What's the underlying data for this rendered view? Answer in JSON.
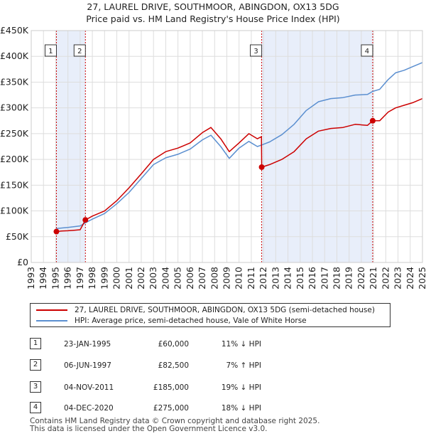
{
  "chart_data": {
    "type": "line",
    "title": "27, LAUREL DRIVE, SOUTHMOOR, ABINGDON, OX13 5DG",
    "subtitle": "Price paid vs. HM Land Registry's House Price Index (HPI)",
    "xlim": [
      1993,
      2025
    ],
    "ylim": [
      0,
      450000
    ],
    "x_ticks": [
      "1993",
      "1994",
      "1995",
      "1996",
      "1997",
      "1998",
      "1999",
      "2000",
      "2001",
      "2002",
      "2003",
      "2004",
      "2005",
      "2006",
      "2007",
      "2008",
      "2009",
      "2010",
      "2011",
      "2012",
      "2013",
      "2014",
      "2015",
      "2016",
      "2017",
      "2018",
      "2019",
      "2020",
      "2021",
      "2022",
      "2023",
      "2024",
      "2025"
    ],
    "y_ticks": [
      {
        "value": 0,
        "label": "£0"
      },
      {
        "value": 50000,
        "label": "£50K"
      },
      {
        "value": 100000,
        "label": "£100K"
      },
      {
        "value": 150000,
        "label": "£150K"
      },
      {
        "value": 200000,
        "label": "£200K"
      },
      {
        "value": 250000,
        "label": "£250K"
      },
      {
        "value": 300000,
        "label": "£300K"
      },
      {
        "value": 350000,
        "label": "£350K"
      },
      {
        "value": 400000,
        "label": "£400K"
      },
      {
        "value": 450000,
        "label": "£450K"
      }
    ],
    "series": [
      {
        "name": "27, LAUREL DRIVE, SOUTHMOOR, ABINGDON, OX13 5DG (semi-detached house)",
        "color": "#cc0000",
        "points": [
          [
            1995.06,
            60000
          ],
          [
            1995.5,
            61000
          ],
          [
            1996,
            61500
          ],
          [
            1996.5,
            62500
          ],
          [
            1997.0,
            63500
          ],
          [
            1997.43,
            82500
          ],
          [
            1998,
            90000
          ],
          [
            1999,
            100000
          ],
          [
            2000,
            120000
          ],
          [
            2001,
            145000
          ],
          [
            2002,
            172000
          ],
          [
            2003,
            200000
          ],
          [
            2004,
            215000
          ],
          [
            2005,
            222000
          ],
          [
            2006,
            232000
          ],
          [
            2007,
            252000
          ],
          [
            2007.7,
            262000
          ],
          [
            2008.5,
            240000
          ],
          [
            2009.2,
            215000
          ],
          [
            2010,
            232000
          ],
          [
            2010.8,
            250000
          ],
          [
            2011.5,
            240000
          ],
          [
            2011.83,
            244000
          ],
          [
            2011.85,
            185000
          ],
          [
            2012.5,
            190000
          ],
          [
            2013.5,
            200000
          ],
          [
            2014.5,
            215000
          ],
          [
            2015.5,
            240000
          ],
          [
            2016.5,
            255000
          ],
          [
            2017.5,
            260000
          ],
          [
            2018.5,
            262000
          ],
          [
            2019.5,
            268000
          ],
          [
            2020.5,
            266000
          ],
          [
            2020.93,
            275000
          ],
          [
            2021.5,
            275000
          ],
          [
            2022.2,
            292000
          ],
          [
            2022.8,
            300000
          ],
          [
            2023.5,
            305000
          ],
          [
            2024.2,
            310000
          ],
          [
            2025,
            318000
          ]
        ]
      },
      {
        "name": "HPI: Average price, semi-detached house, Vale of White Horse",
        "color": "#5b8fd0",
        "points": [
          [
            1995.06,
            66000
          ],
          [
            1996,
            68000
          ],
          [
            1997,
            71000
          ],
          [
            1997.43,
            77000
          ],
          [
            1998,
            84000
          ],
          [
            1999,
            95000
          ],
          [
            2000,
            114000
          ],
          [
            2001,
            136000
          ],
          [
            2002,
            163000
          ],
          [
            2003,
            190000
          ],
          [
            2004,
            203000
          ],
          [
            2005,
            210000
          ],
          [
            2006,
            220000
          ],
          [
            2007,
            238000
          ],
          [
            2007.7,
            247000
          ],
          [
            2008.5,
            225000
          ],
          [
            2009.2,
            202000
          ],
          [
            2010,
            222000
          ],
          [
            2010.8,
            235000
          ],
          [
            2011.5,
            225000
          ],
          [
            2011.85,
            228000
          ],
          [
            2012.5,
            234000
          ],
          [
            2013.5,
            248000
          ],
          [
            2014.5,
            268000
          ],
          [
            2015.5,
            295000
          ],
          [
            2016.5,
            312000
          ],
          [
            2017.5,
            318000
          ],
          [
            2018.5,
            320000
          ],
          [
            2019.5,
            325000
          ],
          [
            2020.5,
            326000
          ],
          [
            2020.93,
            332000
          ],
          [
            2021.5,
            336000
          ],
          [
            2022.2,
            355000
          ],
          [
            2022.8,
            368000
          ],
          [
            2023.5,
            373000
          ],
          [
            2024.2,
            380000
          ],
          [
            2025,
            388000
          ]
        ]
      }
    ],
    "sales": [
      {
        "id": "1",
        "x": 1995.06,
        "price": 60000
      },
      {
        "id": "2",
        "x": 1997.43,
        "price": 82500
      },
      {
        "id": "3",
        "x": 2011.85,
        "price": 185000
      },
      {
        "id": "4",
        "x": 2020.93,
        "price": 275000
      }
    ],
    "shaded_ranges": [
      [
        1995.06,
        1997.43
      ],
      [
        2011.85,
        2020.93
      ]
    ],
    "colors": {
      "shade": "#e8eefa",
      "grid": "#dddddd",
      "vline": "#cc0000",
      "marker": "#cc0000"
    }
  },
  "legend": {
    "property_label": "27, LAUREL DRIVE, SOUTHMOOR, ABINGDON, OX13 5DG (semi-detached house)",
    "hpi_label": "HPI: Average price, semi-detached house, Vale of White Horse"
  },
  "sales_table": [
    {
      "num": "1",
      "date": "23-JAN-1995",
      "price": "£60,000",
      "hpi": "11% ↓ HPI"
    },
    {
      "num": "2",
      "date": "06-JUN-1997",
      "price": "£82,500",
      "hpi": "7% ↑ HPI"
    },
    {
      "num": "3",
      "date": "04-NOV-2011",
      "price": "£185,000",
      "hpi": "19% ↓ HPI"
    },
    {
      "num": "4",
      "date": "04-DEC-2020",
      "price": "£275,000",
      "hpi": "18% ↓ HPI"
    }
  ],
  "footer": {
    "line1": "Contains HM Land Registry data © Crown copyright and database right 2025.",
    "line2": "This data is licensed under the Open Government Licence v3.0."
  }
}
